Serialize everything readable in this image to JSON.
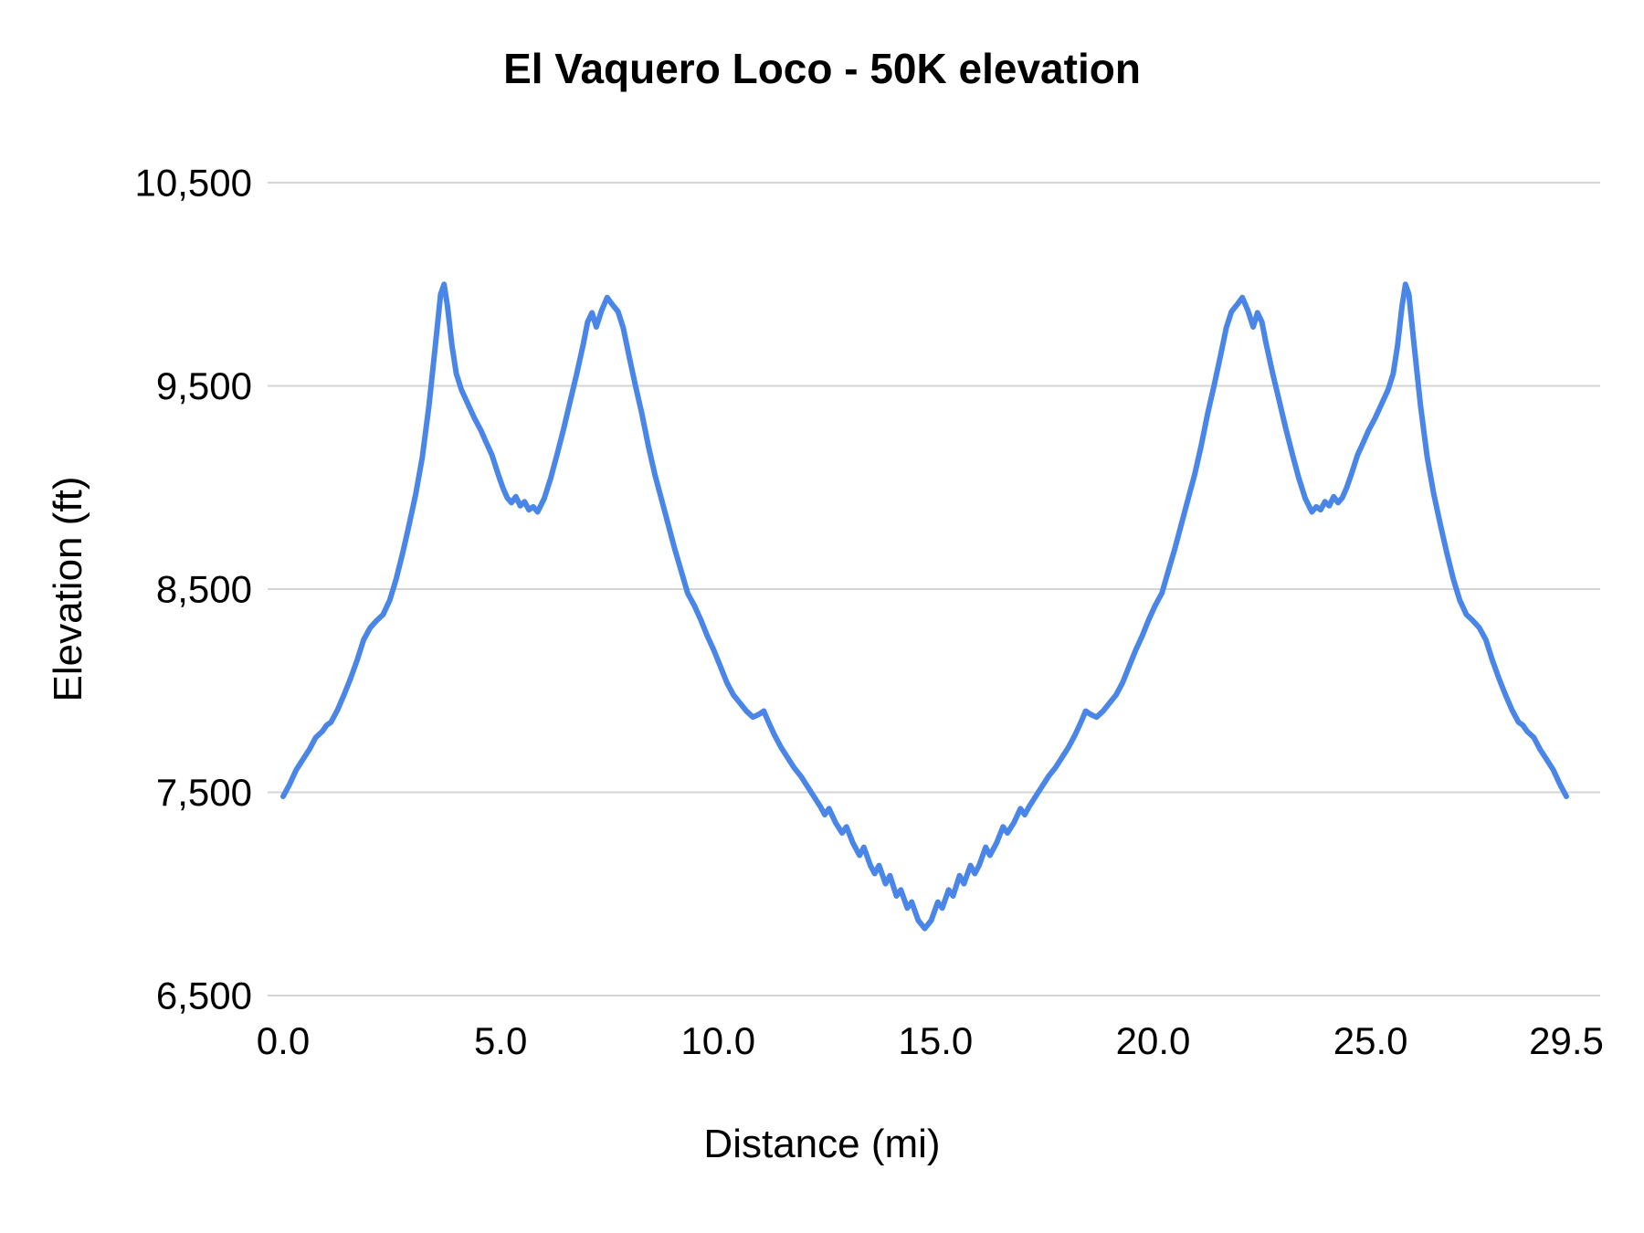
{
  "chart_data": {
    "type": "line",
    "title": "El Vaquero Loco - 50K elevation",
    "xlabel": "Distance (mi)",
    "ylabel": "Elevation (ft)",
    "xlim": [
      0,
      29.5
    ],
    "ylim": [
      6500,
      10500
    ],
    "grid": "horizontal",
    "legend": "none",
    "line_color": "#4a86e8",
    "gridline_color": "#d4d4d4",
    "text_color": "#000000",
    "xticks": [
      {
        "value": 0,
        "label": "0.0"
      },
      {
        "value": 5,
        "label": "5.0"
      },
      {
        "value": 10,
        "label": "10.0"
      },
      {
        "value": 15,
        "label": "15.0"
      },
      {
        "value": 20,
        "label": "20.0"
      },
      {
        "value": 25,
        "label": "25.0"
      },
      {
        "value": 29.5,
        "label": "29.5"
      }
    ],
    "yticks": [
      {
        "value": 6500,
        "label": "6,500"
      },
      {
        "value": 7500,
        "label": "7,500"
      },
      {
        "value": 8500,
        "label": "8,500"
      },
      {
        "value": 9500,
        "label": "9,500"
      },
      {
        "value": 10500,
        "label": "10,500"
      }
    ],
    "series": [
      {
        "name": "Elevation",
        "points": [
          [
            0,
            7480
          ],
          [
            0.15,
            7540
          ],
          [
            0.3,
            7610
          ],
          [
            0.45,
            7660
          ],
          [
            0.6,
            7710
          ],
          [
            0.75,
            7770
          ],
          [
            0.9,
            7800
          ],
          [
            1,
            7830
          ],
          [
            1.1,
            7845
          ],
          [
            1.25,
            7905
          ],
          [
            1.4,
            7980
          ],
          [
            1.55,
            8060
          ],
          [
            1.7,
            8150
          ],
          [
            1.85,
            8250
          ],
          [
            2,
            8310
          ],
          [
            2.15,
            8345
          ],
          [
            2.3,
            8375
          ],
          [
            2.45,
            8445
          ],
          [
            2.6,
            8550
          ],
          [
            2.75,
            8680
          ],
          [
            2.9,
            8820
          ],
          [
            3.05,
            8970
          ],
          [
            3.2,
            9150
          ],
          [
            3.35,
            9400
          ],
          [
            3.5,
            9700
          ],
          [
            3.62,
            9950
          ],
          [
            3.7,
            10000
          ],
          [
            3.78,
            9890
          ],
          [
            3.88,
            9700
          ],
          [
            3.98,
            9560
          ],
          [
            4.1,
            9480
          ],
          [
            4.25,
            9410
          ],
          [
            4.4,
            9340
          ],
          [
            4.55,
            9280
          ],
          [
            4.65,
            9230
          ],
          [
            4.8,
            9160
          ],
          [
            4.95,
            9060
          ],
          [
            5.05,
            9000
          ],
          [
            5.15,
            8950
          ],
          [
            5.25,
            8925
          ],
          [
            5.35,
            8955
          ],
          [
            5.45,
            8910
          ],
          [
            5.55,
            8930
          ],
          [
            5.65,
            8890
          ],
          [
            5.75,
            8905
          ],
          [
            5.85,
            8880
          ],
          [
            6,
            8945
          ],
          [
            6.15,
            9045
          ],
          [
            6.3,
            9165
          ],
          [
            6.45,
            9290
          ],
          [
            6.6,
            9425
          ],
          [
            6.75,
            9560
          ],
          [
            6.9,
            9705
          ],
          [
            7,
            9815
          ],
          [
            7.1,
            9860
          ],
          [
            7.2,
            9790
          ],
          [
            7.32,
            9870
          ],
          [
            7.45,
            9935
          ],
          [
            7.55,
            9905
          ],
          [
            7.7,
            9865
          ],
          [
            7.82,
            9785
          ],
          [
            7.95,
            9650
          ],
          [
            8.1,
            9500
          ],
          [
            8.25,
            9360
          ],
          [
            8.4,
            9200
          ],
          [
            8.55,
            9060
          ],
          [
            8.7,
            8940
          ],
          [
            8.85,
            8820
          ],
          [
            9,
            8700
          ],
          [
            9.15,
            8590
          ],
          [
            9.3,
            8480
          ],
          [
            9.45,
            8420
          ],
          [
            9.6,
            8350
          ],
          [
            9.75,
            8270
          ],
          [
            9.9,
            8200
          ],
          [
            10.05,
            8120
          ],
          [
            10.2,
            8040
          ],
          [
            10.35,
            7980
          ],
          [
            10.5,
            7940
          ],
          [
            10.65,
            7900
          ],
          [
            10.8,
            7870
          ],
          [
            10.95,
            7885
          ],
          [
            11.05,
            7900
          ],
          [
            11.15,
            7850
          ],
          [
            11.3,
            7780
          ],
          [
            11.45,
            7720
          ],
          [
            11.6,
            7670
          ],
          [
            11.75,
            7620
          ],
          [
            11.9,
            7580
          ],
          [
            12.05,
            7530
          ],
          [
            12.2,
            7480
          ],
          [
            12.35,
            7430
          ],
          [
            12.45,
            7390
          ],
          [
            12.55,
            7420
          ],
          [
            12.7,
            7350
          ],
          [
            12.85,
            7300
          ],
          [
            12.95,
            7330
          ],
          [
            13.1,
            7250
          ],
          [
            13.25,
            7190
          ],
          [
            13.35,
            7230
          ],
          [
            13.5,
            7140
          ],
          [
            13.6,
            7100
          ],
          [
            13.7,
            7140
          ],
          [
            13.85,
            7050
          ],
          [
            13.95,
            7090
          ],
          [
            14.1,
            6990
          ],
          [
            14.2,
            7020
          ],
          [
            14.35,
            6930
          ],
          [
            14.45,
            6960
          ],
          [
            14.6,
            6870
          ],
          [
            14.75,
            6830
          ],
          [
            14.9,
            6870
          ],
          [
            15.05,
            6960
          ],
          [
            15.15,
            6930
          ],
          [
            15.3,
            7020
          ],
          [
            15.4,
            6990
          ],
          [
            15.55,
            7090
          ],
          [
            15.65,
            7050
          ],
          [
            15.8,
            7140
          ],
          [
            15.9,
            7100
          ],
          [
            16,
            7140
          ],
          [
            16.15,
            7230
          ],
          [
            16.25,
            7190
          ],
          [
            16.4,
            7250
          ],
          [
            16.55,
            7330
          ],
          [
            16.65,
            7300
          ],
          [
            16.8,
            7350
          ],
          [
            16.95,
            7420
          ],
          [
            17.05,
            7390
          ],
          [
            17.15,
            7430
          ],
          [
            17.3,
            7480
          ],
          [
            17.45,
            7530
          ],
          [
            17.6,
            7580
          ],
          [
            17.75,
            7620
          ],
          [
            17.9,
            7670
          ],
          [
            18.05,
            7720
          ],
          [
            18.2,
            7780
          ],
          [
            18.35,
            7850
          ],
          [
            18.45,
            7900
          ],
          [
            18.55,
            7885
          ],
          [
            18.7,
            7870
          ],
          [
            18.85,
            7900
          ],
          [
            19,
            7940
          ],
          [
            19.15,
            7980
          ],
          [
            19.3,
            8040
          ],
          [
            19.45,
            8120
          ],
          [
            19.6,
            8200
          ],
          [
            19.75,
            8270
          ],
          [
            19.9,
            8350
          ],
          [
            20.05,
            8420
          ],
          [
            20.2,
            8480
          ],
          [
            20.35,
            8590
          ],
          [
            20.5,
            8700
          ],
          [
            20.65,
            8820
          ],
          [
            20.8,
            8940
          ],
          [
            20.95,
            9060
          ],
          [
            21.1,
            9200
          ],
          [
            21.25,
            9360
          ],
          [
            21.4,
            9500
          ],
          [
            21.55,
            9650
          ],
          [
            21.68,
            9785
          ],
          [
            21.8,
            9865
          ],
          [
            21.95,
            9905
          ],
          [
            22.05,
            9935
          ],
          [
            22.18,
            9870
          ],
          [
            22.3,
            9790
          ],
          [
            22.4,
            9860
          ],
          [
            22.5,
            9815
          ],
          [
            22.6,
            9705
          ],
          [
            22.75,
            9560
          ],
          [
            22.9,
            9425
          ],
          [
            23.05,
            9290
          ],
          [
            23.2,
            9165
          ],
          [
            23.35,
            9045
          ],
          [
            23.5,
            8945
          ],
          [
            23.65,
            8880
          ],
          [
            23.75,
            8905
          ],
          [
            23.85,
            8890
          ],
          [
            23.95,
            8930
          ],
          [
            24.05,
            8910
          ],
          [
            24.15,
            8955
          ],
          [
            24.25,
            8925
          ],
          [
            24.35,
            8950
          ],
          [
            24.45,
            9000
          ],
          [
            24.55,
            9060
          ],
          [
            24.7,
            9160
          ],
          [
            24.85,
            9230
          ],
          [
            24.95,
            9280
          ],
          [
            25.1,
            9340
          ],
          [
            25.25,
            9410
          ],
          [
            25.4,
            9480
          ],
          [
            25.52,
            9560
          ],
          [
            25.62,
            9700
          ],
          [
            25.72,
            9890
          ],
          [
            25.8,
            10000
          ],
          [
            25.88,
            9950
          ],
          [
            26,
            9700
          ],
          [
            26.15,
            9400
          ],
          [
            26.3,
            9150
          ],
          [
            26.45,
            8970
          ],
          [
            26.6,
            8820
          ],
          [
            26.75,
            8680
          ],
          [
            26.9,
            8550
          ],
          [
            27.05,
            8445
          ],
          [
            27.2,
            8375
          ],
          [
            27.35,
            8345
          ],
          [
            27.5,
            8310
          ],
          [
            27.65,
            8250
          ],
          [
            27.8,
            8150
          ],
          [
            27.95,
            8060
          ],
          [
            28.1,
            7980
          ],
          [
            28.25,
            7905
          ],
          [
            28.4,
            7845
          ],
          [
            28.5,
            7830
          ],
          [
            28.6,
            7800
          ],
          [
            28.75,
            7770
          ],
          [
            28.9,
            7710
          ],
          [
            29.05,
            7660
          ],
          [
            29.2,
            7610
          ],
          [
            29.35,
            7540
          ],
          [
            29.5,
            7480
          ]
        ]
      }
    ]
  }
}
